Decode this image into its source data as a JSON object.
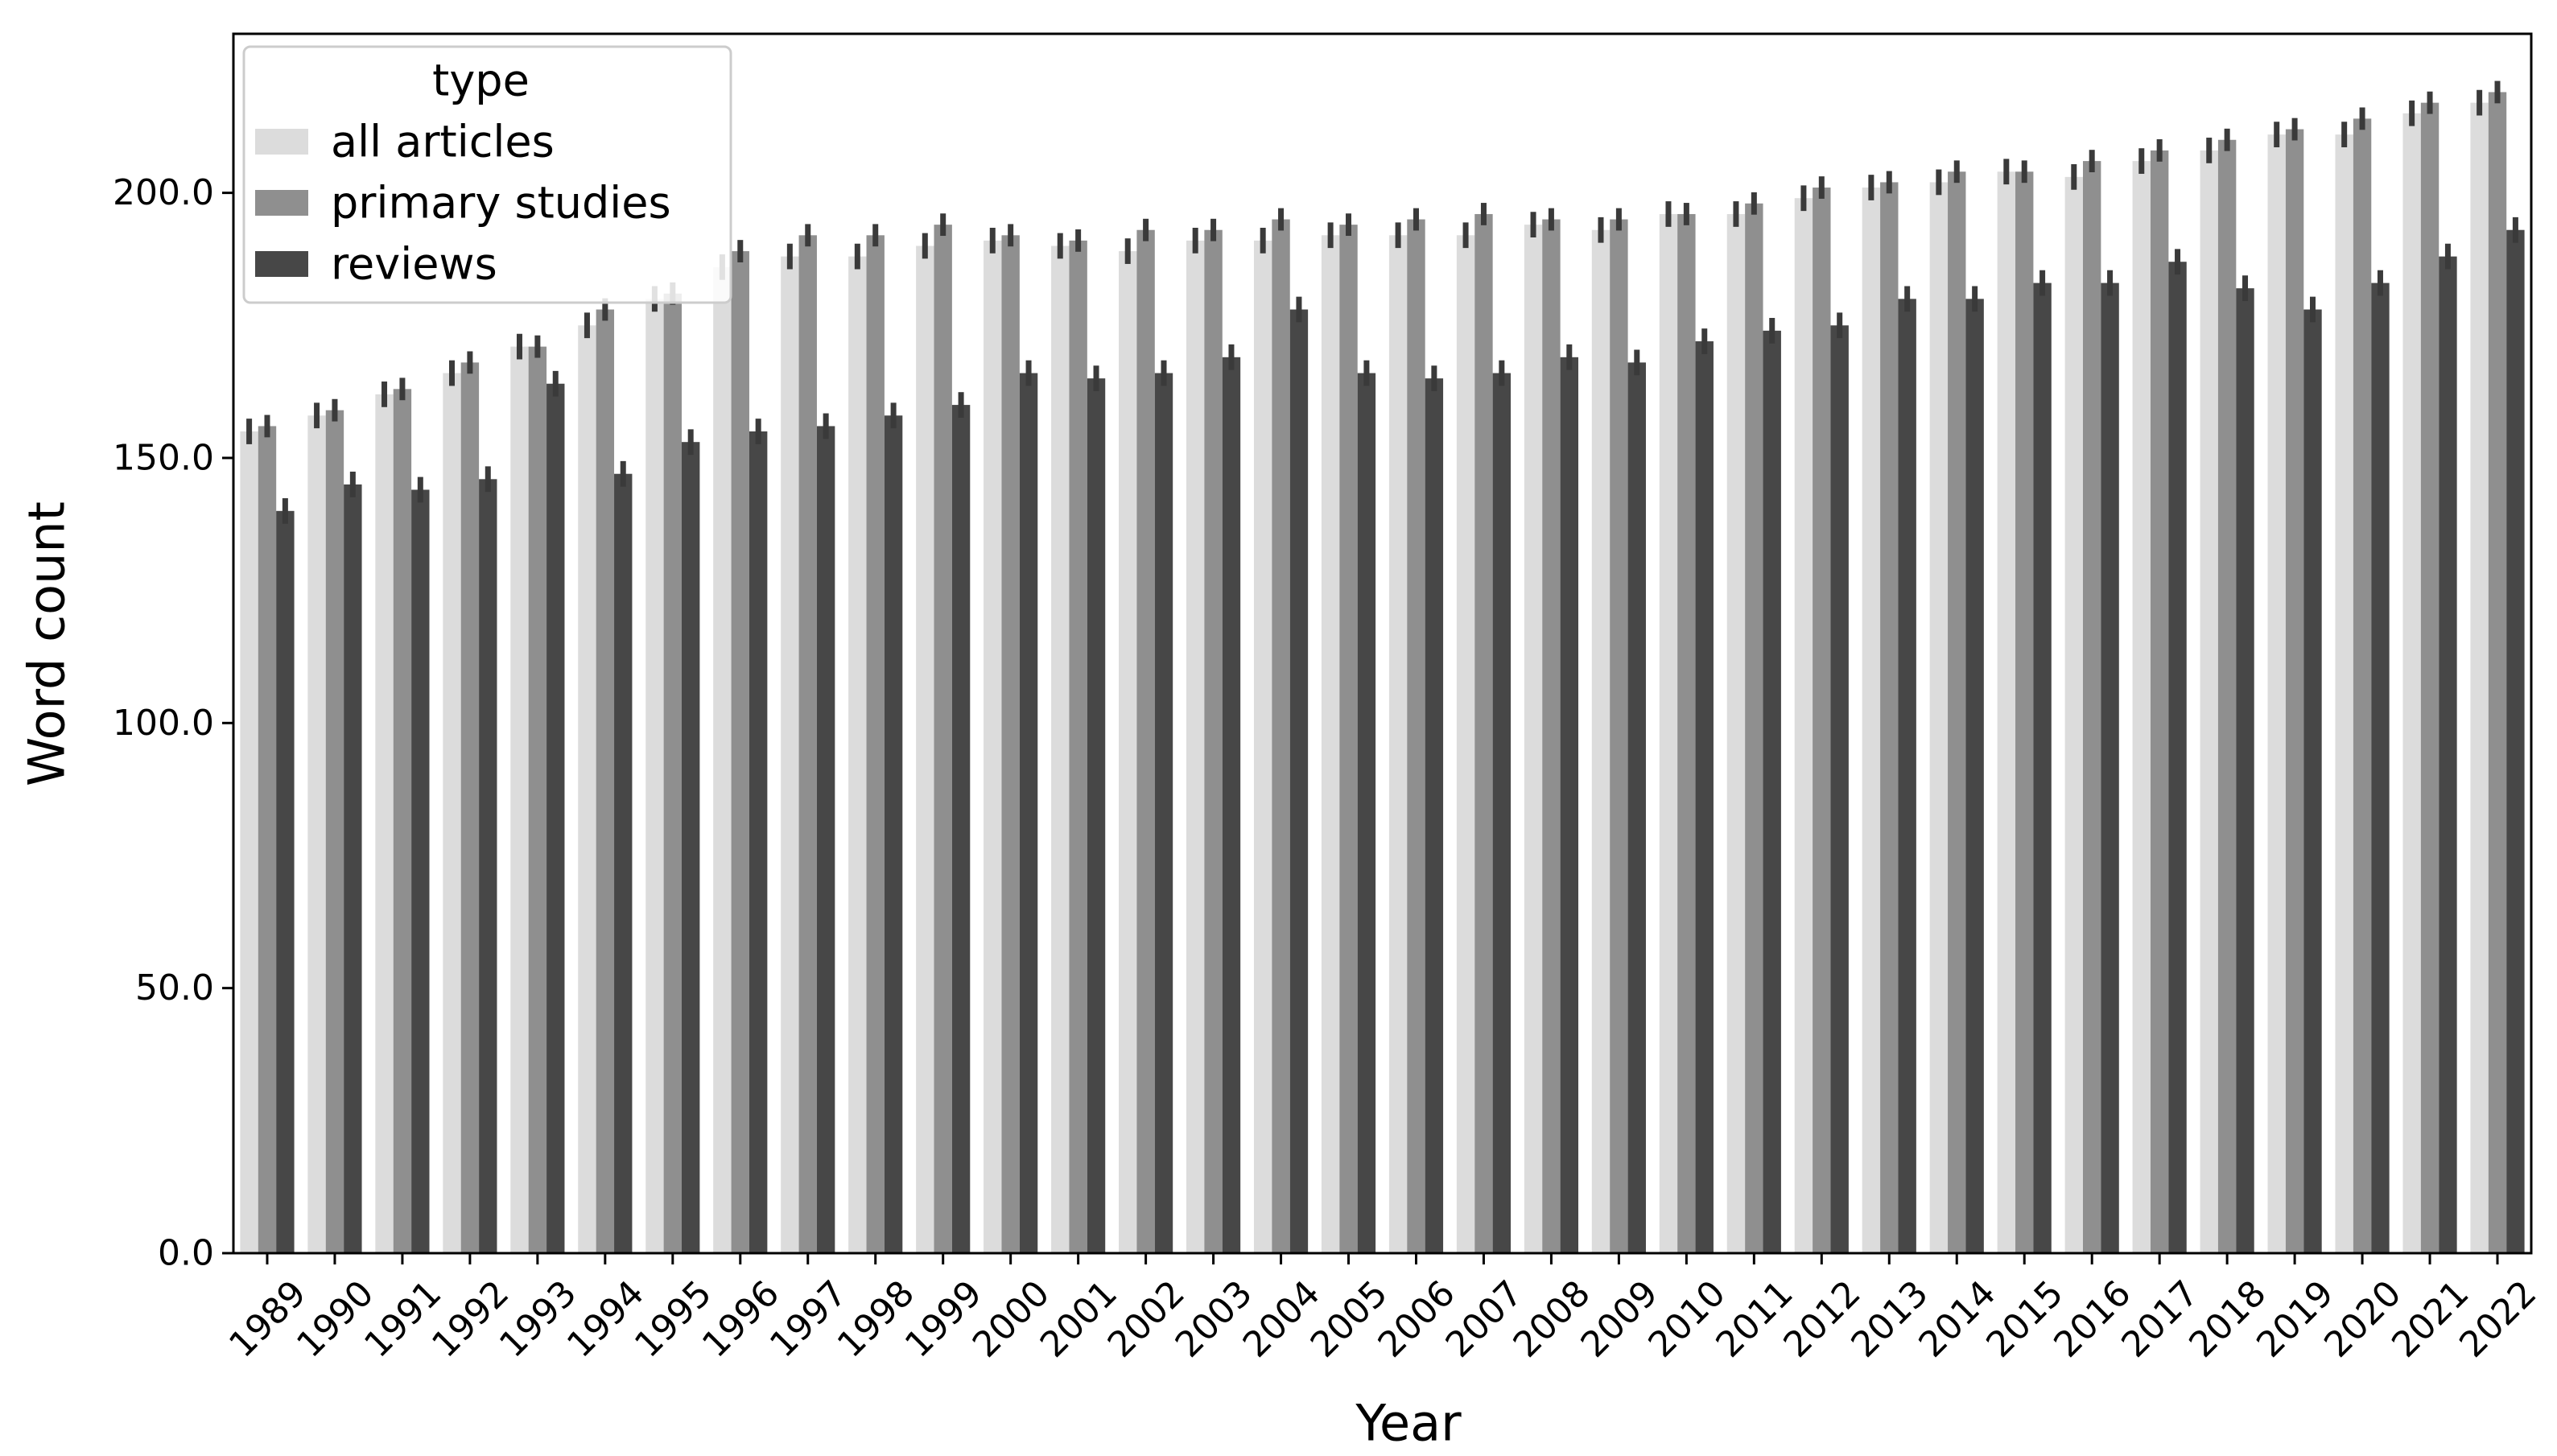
{
  "chart_data": {
    "type": "bar",
    "title": "",
    "xlabel": "Year",
    "ylabel": "Word count",
    "ylim": [
      0,
      230
    ],
    "yticks": [
      "0.0",
      "50.0",
      "100.0",
      "150.0",
      "200.0"
    ],
    "ytick_values": [
      0,
      50,
      100,
      150,
      200
    ],
    "grid": false,
    "categories": [
      "1989",
      "1990",
      "1991",
      "1992",
      "1993",
      "1994",
      "1995",
      "1996",
      "1997",
      "1998",
      "1999",
      "2000",
      "2001",
      "2002",
      "2003",
      "2004",
      "2005",
      "2006",
      "2007",
      "2008",
      "2009",
      "2010",
      "2011",
      "2012",
      "2013",
      "2014",
      "2015",
      "2016",
      "2017",
      "2018",
      "2019",
      "2020",
      "2021",
      "2022"
    ],
    "series": [
      {
        "name": "all articles",
        "color": "#dcdcdc",
        "values": [
          155,
          158,
          162,
          166,
          171,
          175,
          180,
          186,
          188,
          188,
          190,
          191,
          190,
          189,
          191,
          191,
          192,
          192,
          192,
          194,
          193,
          196,
          196,
          199,
          201,
          202,
          204,
          203,
          206,
          208,
          211,
          211,
          215,
          217
        ],
        "errors": [
          1.5,
          1.5,
          1.5,
          1.5,
          1.5,
          1.5,
          1.5,
          1.5,
          1.5,
          1.5,
          1.5,
          1.5,
          1.5,
          1.5,
          1.5,
          1.5,
          1.5,
          1.5,
          1.5,
          1.5,
          1.5,
          1.5,
          1.5,
          1.5,
          1.5,
          1.5,
          1.5,
          1.5,
          1.5,
          1.5,
          1.5,
          1.5,
          1.5,
          1.5
        ]
      },
      {
        "name": "primary studies",
        "color": "#8f8f8f",
        "values": [
          156,
          159,
          163,
          168,
          171,
          178,
          181,
          189,
          192,
          192,
          194,
          192,
          191,
          193,
          193,
          195,
          194,
          195,
          196,
          195,
          195,
          196,
          198,
          201,
          202,
          204,
          204,
          206,
          208,
          210,
          212,
          214,
          217,
          219
        ],
        "errors": [
          1.2,
          1.2,
          1.2,
          1.2,
          1.2,
          1.2,
          1.2,
          1.2,
          1.2,
          1.2,
          1.2,
          1.2,
          1.2,
          1.2,
          1.2,
          1.2,
          1.2,
          1.2,
          1.2,
          1.2,
          1.2,
          1.2,
          1.2,
          1.2,
          1.2,
          1.2,
          1.2,
          1.2,
          1.2,
          1.2,
          1.2,
          1.2,
          1.2,
          1.2
        ]
      },
      {
        "name": "reviews",
        "color": "#474747",
        "values": [
          140,
          145,
          144,
          146,
          164,
          147,
          153,
          155,
          156,
          158,
          160,
          166,
          165,
          166,
          169,
          178,
          166,
          165,
          166,
          169,
          168,
          172,
          174,
          175,
          180,
          180,
          183,
          183,
          187,
          182,
          178,
          183,
          188,
          193
        ],
        "errors": [
          1.5,
          1.5,
          1.5,
          1.5,
          1.5,
          1.5,
          1.5,
          1.5,
          1.5,
          1.5,
          1.5,
          1.5,
          1.5,
          1.5,
          1.5,
          1.5,
          1.5,
          1.5,
          1.5,
          1.5,
          1.5,
          1.5,
          1.5,
          1.5,
          1.5,
          1.5,
          1.5,
          1.5,
          1.5,
          1.5,
          1.5,
          1.5,
          1.5,
          1.5
        ]
      }
    ],
    "legend": {
      "title": "type",
      "placement": "top-left"
    }
  }
}
